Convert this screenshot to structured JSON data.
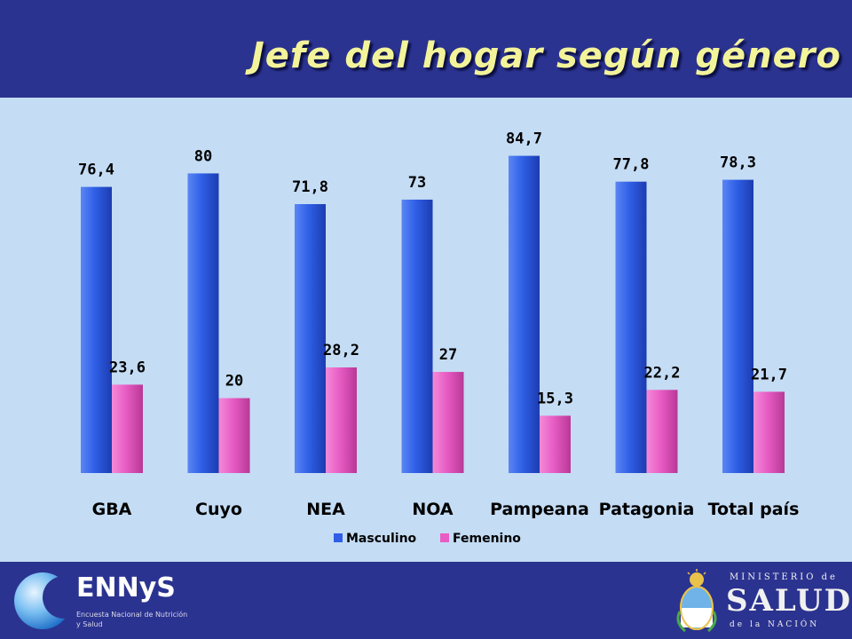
{
  "slide": {
    "title": "Jefe del hogar según género"
  },
  "chart_data": {
    "type": "bar",
    "categories": [
      "GBA",
      "Cuyo",
      "NEA",
      "NOA",
      "Pampeana",
      "Patagonia",
      "Total país"
    ],
    "series": [
      {
        "name": "Masculino",
        "values": [
          76.4,
          80,
          71.8,
          73,
          84.7,
          77.8,
          78.3
        ],
        "labels": [
          "76,4",
          "80",
          "71,8",
          "73",
          "84,7",
          "77,8",
          "78,3"
        ],
        "color": "#2f5fe6"
      },
      {
        "name": "Femenino",
        "values": [
          23.6,
          20,
          28.2,
          27,
          15.3,
          22.2,
          21.7
        ],
        "labels": [
          "23,6",
          "20",
          "28,2",
          "27",
          "15,3",
          "22,2",
          "21,7"
        ],
        "color": "#e85cc4"
      }
    ],
    "ylim": [
      0,
      100
    ],
    "grid": false,
    "legend": "bottom"
  },
  "footer": {
    "left_logo": {
      "name": "ENNyS",
      "subtitle": "Encuesta Nacional de Nutrición y Salud",
      "icon": "moon-globe-icon"
    },
    "right_logo": {
      "top": "MINISTERIO de",
      "main": "SALUD",
      "bottom": "de la NACIÓN",
      "icon": "coat-of-arms-icon"
    }
  },
  "colors": {
    "background": "#2b3390",
    "panel": "#c4dcf4",
    "title": "#f3f39a"
  }
}
